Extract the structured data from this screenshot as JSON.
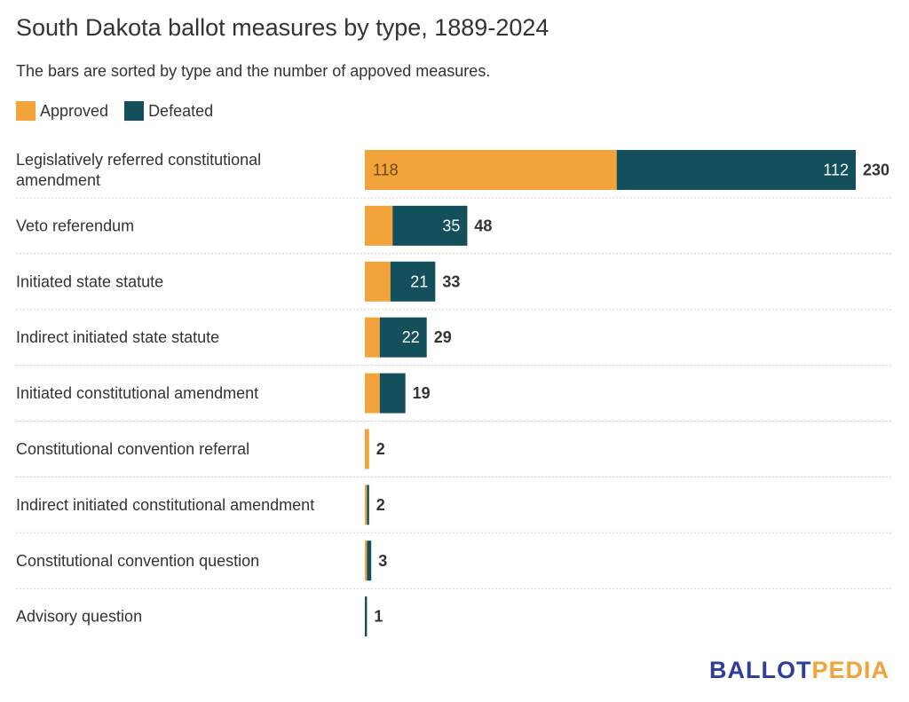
{
  "title": "South Dakota ballot measures by type, 1889-2024",
  "subtitle": "The bars are sorted by type and the number of appoved measures.",
  "legend": [
    {
      "label": "Approved",
      "color": "#F2A33A"
    },
    {
      "label": "Defeated",
      "color": "#13505B"
    }
  ],
  "brand": {
    "part1": "BALLOT",
    "part2": "PEDIA",
    "color1": "#2F3E9E",
    "color2": "#F2A33A"
  },
  "chart_data": {
    "type": "bar",
    "orientation": "horizontal",
    "stacked": true,
    "categories": [
      "Legislatively referred constitutional amendment",
      "Veto referendum",
      "Initiated state statute",
      "Indirect initiated state statute",
      "Initiated constitutional amendment",
      "Constitutional convention referral",
      "Indirect initiated constitutional amendment",
      "Constitutional convention question",
      "Advisory question"
    ],
    "series": [
      {
        "name": "Approved",
        "color": "#F2A33A",
        "values": [
          118,
          13,
          12,
          7,
          7,
          2,
          1,
          1,
          0
        ]
      },
      {
        "name": "Defeated",
        "color": "#13505B",
        "values": [
          112,
          35,
          21,
          22,
          12,
          0,
          1,
          2,
          1
        ]
      }
    ],
    "totals": [
      230,
      48,
      33,
      29,
      19,
      2,
      2,
      3,
      1
    ],
    "segment_labels": {
      "Approved": [
        "118",
        "",
        "",
        "",
        "",
        "",
        "",
        "",
        ""
      ],
      "Defeated": [
        "112",
        "35",
        "21",
        "22",
        "",
        "",
        "",
        "",
        ""
      ]
    },
    "xlim": [
      0,
      230
    ],
    "grid": false
  }
}
